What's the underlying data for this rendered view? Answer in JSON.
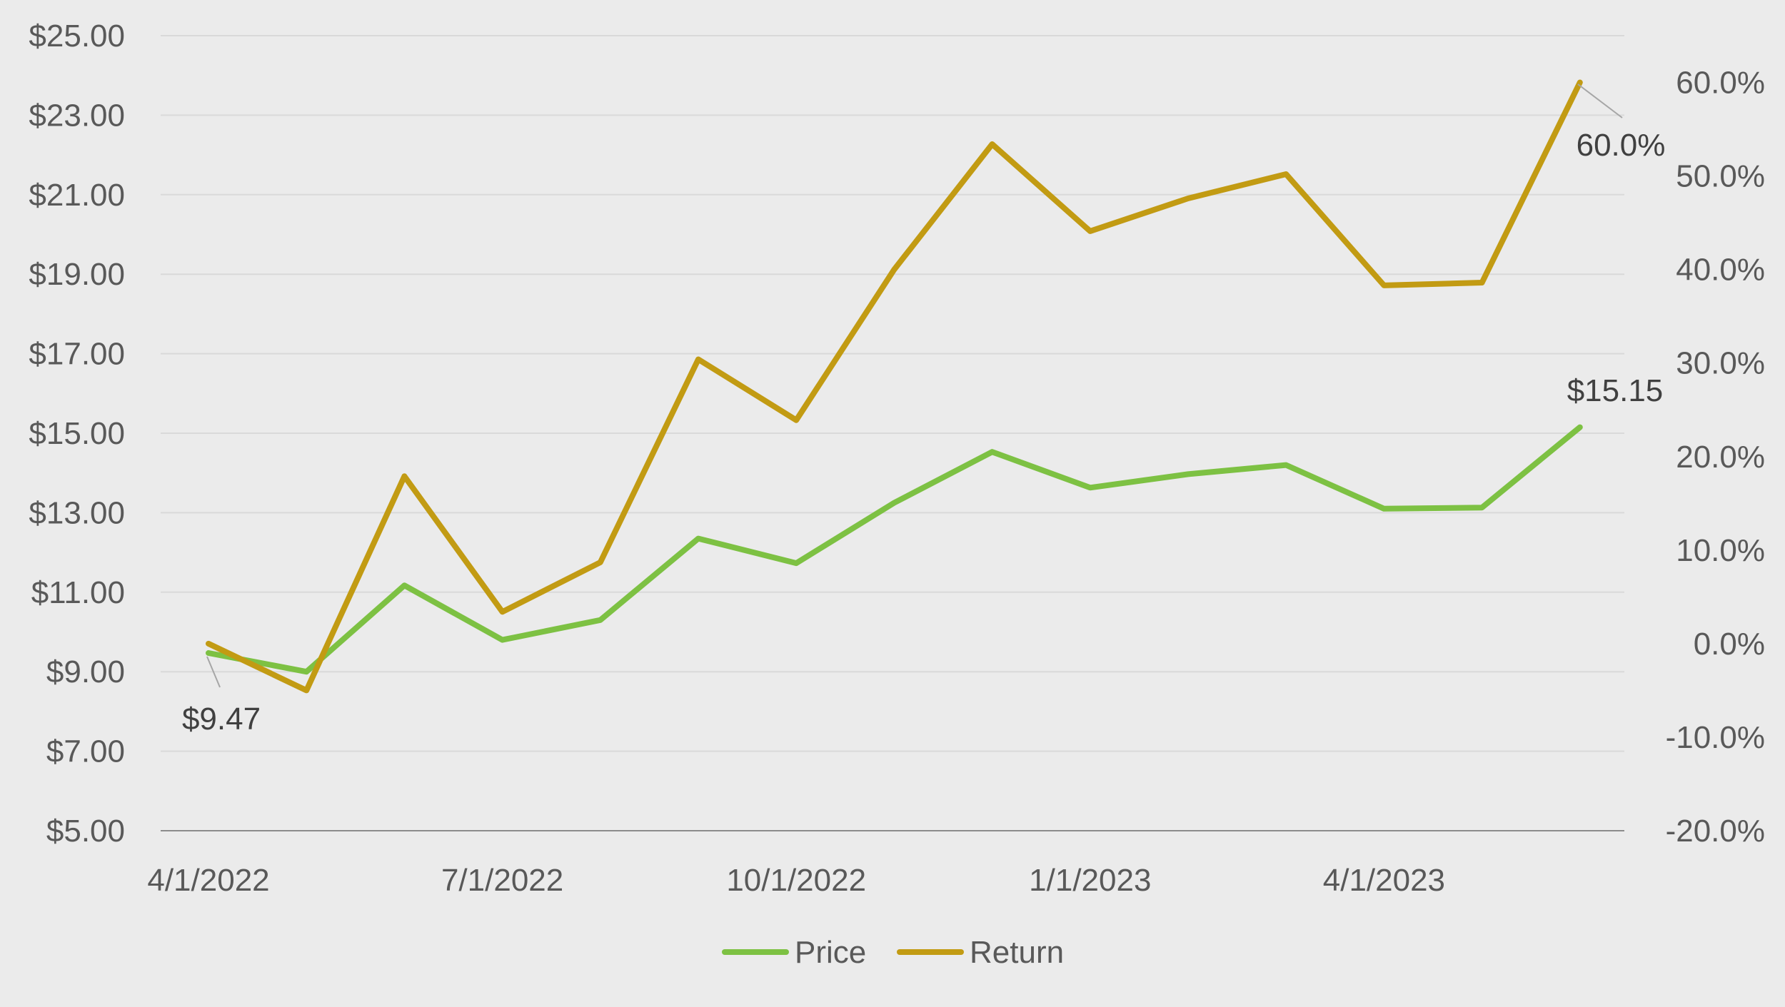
{
  "chart_data": {
    "type": "line",
    "title": "",
    "xlabel": "",
    "ylabel": "",
    "x": [
      "4/1/2022",
      "5/1/2022",
      "6/1/2022",
      "7/1/2022",
      "8/1/2022",
      "9/1/2022",
      "10/1/2022",
      "11/1/2022",
      "12/1/2022",
      "1/1/2023",
      "2/1/2023",
      "3/1/2023",
      "4/1/2023",
      "5/1/2023",
      "6/1/2023"
    ],
    "x_tick_labels": [
      "4/1/2022",
      "7/1/2022",
      "10/1/2022",
      "1/1/2023",
      "4/1/2023"
    ],
    "y_left": {
      "ylim": [
        5,
        25
      ],
      "tick_labels": [
        "$5.00",
        "$7.00",
        "$9.00",
        "$11.00",
        "$13.00",
        "$15.00",
        "$17.00",
        "$19.00",
        "$21.00",
        "$23.00",
        "$25.00"
      ]
    },
    "y_right": {
      "ylim": [
        -20,
        65
      ],
      "tick_labels": [
        "-20.0%",
        "-10.0%",
        "0.0%",
        "10.0%",
        "20.0%",
        "30.0%",
        "40.0%",
        "50.0%",
        "60.0%"
      ]
    },
    "grid": true,
    "legend_position": "bottom",
    "series": [
      {
        "name": "Price",
        "axis": "left",
        "color": "#7dc143",
        "values": [
          9.47,
          9.0,
          11.17,
          9.8,
          10.3,
          12.35,
          11.73,
          13.25,
          14.53,
          13.63,
          13.97,
          14.2,
          13.1,
          13.13,
          15.15
        ]
      },
      {
        "name": "Return",
        "axis": "right",
        "color": "#c29b13",
        "values": [
          0.0,
          -5.0,
          17.9,
          3.4,
          8.7,
          30.4,
          23.9,
          40.0,
          53.4,
          44.1,
          47.6,
          50.2,
          38.3,
          38.6,
          60.0
        ]
      }
    ],
    "annotations": [
      {
        "series": "Price",
        "index": 0,
        "text": "$9.47"
      },
      {
        "series": "Price",
        "index": 14,
        "text": "$15.15"
      },
      {
        "series": "Return",
        "index": 14,
        "text": "60.0%"
      }
    ]
  }
}
